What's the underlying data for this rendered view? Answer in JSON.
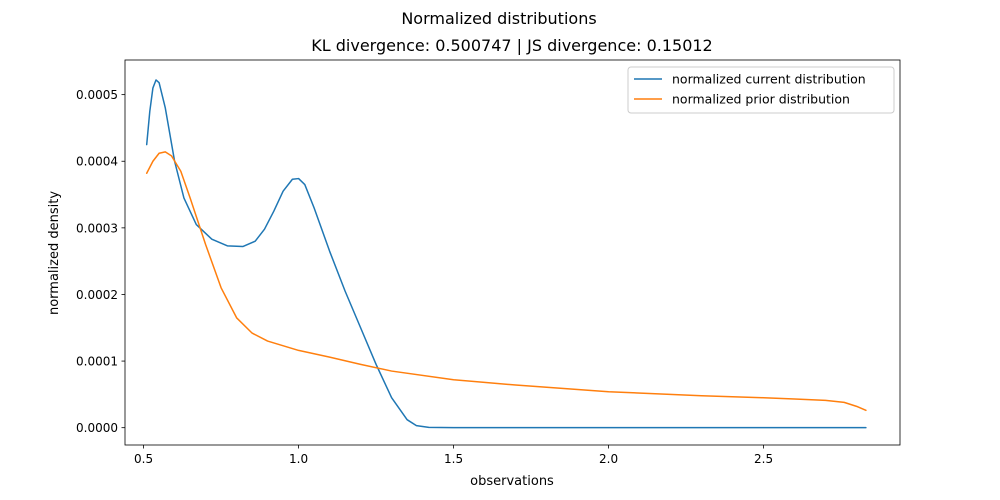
{
  "chart_data": {
    "type": "line",
    "title": "Normalized distributions",
    "subtitle": "KL divergence: 0.500747 | JS divergence: 0.15012",
    "xlabel": "observations",
    "ylabel": "normalized density",
    "xlim": [
      0.44,
      2.94
    ],
    "ylim": [
      -2.6e-05,
      0.000552
    ],
    "xticks": [
      0.5,
      1.0,
      1.5,
      2.0,
      2.5
    ],
    "xtick_labels": [
      "0.5",
      "1.0",
      "1.5",
      "2.0",
      "2.5"
    ],
    "yticks": [
      0.0,
      0.0001,
      0.0002,
      0.0003,
      0.0004,
      0.0005
    ],
    "ytick_labels": [
      "0.0000",
      "0.0001",
      "0.0002",
      "0.0003",
      "0.0004",
      "0.0005"
    ],
    "grid": false,
    "legend_position": "top-right",
    "series": [
      {
        "name": "normalized current distribution",
        "color": "#1f77b4",
        "points": [
          [
            0.51,
            0.000425
          ],
          [
            0.52,
            0.000475
          ],
          [
            0.53,
            0.00051
          ],
          [
            0.54,
            0.000522
          ],
          [
            0.55,
            0.000518
          ],
          [
            0.57,
            0.00048
          ],
          [
            0.6,
            0.0004
          ],
          [
            0.63,
            0.000345
          ],
          [
            0.67,
            0.000305
          ],
          [
            0.72,
            0.000283
          ],
          [
            0.77,
            0.000273
          ],
          [
            0.82,
            0.000272
          ],
          [
            0.86,
            0.00028
          ],
          [
            0.89,
            0.000298
          ],
          [
            0.92,
            0.000325
          ],
          [
            0.95,
            0.000355
          ],
          [
            0.98,
            0.000373
          ],
          [
            1.0,
            0.000374
          ],
          [
            1.02,
            0.000365
          ],
          [
            1.05,
            0.00033
          ],
          [
            1.1,
            0.000265
          ],
          [
            1.15,
            0.000205
          ],
          [
            1.2,
            0.00015
          ],
          [
            1.25,
            9.5e-05
          ],
          [
            1.3,
            4.5e-05
          ],
          [
            1.35,
            1.2e-05
          ],
          [
            1.38,
            3e-06
          ],
          [
            1.42,
            5e-07
          ],
          [
            1.5,
            0.0
          ],
          [
            2.0,
            0.0
          ],
          [
            2.5,
            0.0
          ],
          [
            2.83,
            0.0
          ]
        ]
      },
      {
        "name": "normalized prior distribution",
        "color": "#ff7f0e",
        "points": [
          [
            0.51,
            0.000382
          ],
          [
            0.53,
            0.0004
          ],
          [
            0.55,
            0.000412
          ],
          [
            0.57,
            0.000414
          ],
          [
            0.59,
            0.000408
          ],
          [
            0.62,
            0.000385
          ],
          [
            0.65,
            0.000345
          ],
          [
            0.7,
            0.000275
          ],
          [
            0.75,
            0.00021
          ],
          [
            0.8,
            0.000165
          ],
          [
            0.85,
            0.000142
          ],
          [
            0.9,
            0.00013
          ],
          [
            1.0,
            0.000116
          ],
          [
            1.1,
            0.000106
          ],
          [
            1.2,
            9.5e-05
          ],
          [
            1.3,
            8.5e-05
          ],
          [
            1.5,
            7.2e-05
          ],
          [
            1.7,
            6.4e-05
          ],
          [
            2.0,
            5.4e-05
          ],
          [
            2.3,
            4.8e-05
          ],
          [
            2.5,
            4.5e-05
          ],
          [
            2.6,
            4.3e-05
          ],
          [
            2.7,
            4.1e-05
          ],
          [
            2.76,
            3.8e-05
          ],
          [
            2.8,
            3.2e-05
          ],
          [
            2.83,
            2.6e-05
          ]
        ]
      }
    ]
  }
}
